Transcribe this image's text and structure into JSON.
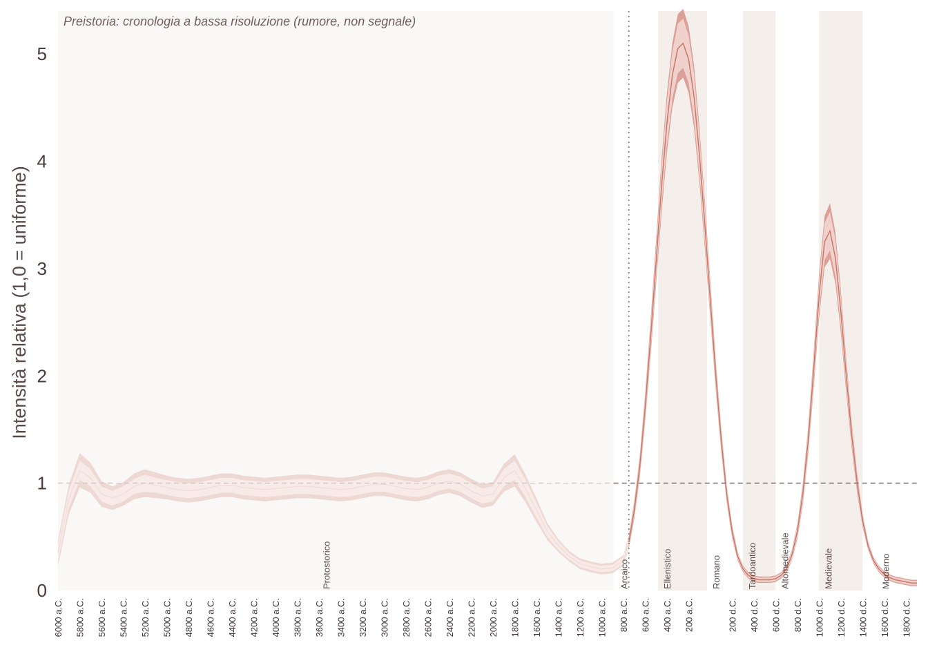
{
  "chart_data": {
    "type": "area",
    "title": "",
    "ylabel": "Intensità relativa (1,0 = uniforme)",
    "xlabel": "",
    "xlim": [
      -6000,
      1900
    ],
    "ylim": [
      0,
      5.4
    ],
    "yticks": [
      0,
      1,
      2,
      3,
      4,
      5
    ],
    "ytick_labels": [
      "0",
      "1",
      "2",
      "3",
      "4",
      "5"
    ],
    "xticks": [
      -6000,
      -5800,
      -5600,
      -5400,
      -5200,
      -5000,
      -4800,
      -4600,
      -4400,
      -4200,
      -4000,
      -3800,
      -3600,
      -3400,
      -3200,
      -3000,
      -2800,
      -2600,
      -2400,
      -2200,
      -2000,
      -1800,
      -1600,
      -1400,
      -1200,
      -1000,
      -800,
      -600,
      -400,
      -200,
      200,
      400,
      600,
      800,
      1000,
      1200,
      1400,
      1600,
      1800
    ],
    "xtick_labels": [
      "6000 a.C.",
      "5800 a.C.",
      "5600 a.C.",
      "5400 a.C.",
      "5200 a.C.",
      "5000 a.C.",
      "4800 a.C.",
      "4600 a.C.",
      "4400 a.C.",
      "4200 a.C.",
      "4000 a.C.",
      "3800 a.C.",
      "3600 a.C.",
      "3400 a.C.",
      "3200 a.C.",
      "3000 a.C.",
      "2800 a.C.",
      "2600 a.C.",
      "2400 a.C.",
      "2200 a.C.",
      "2000 a.C.",
      "1800 a.C.",
      "1600 a.C.",
      "1400 a.C.",
      "1200 a.C.",
      "1000 a.C.",
      "800 a.C.",
      "600 a.C.",
      "400 a.C.",
      "200 a.C.",
      "200 d.C.",
      "400 d.C.",
      "600 d.C.",
      "800 d.C.",
      "1000 d.C.",
      "1200 d.C.",
      "1400 d.C.",
      "1600 d.C.",
      "1800 d.C."
    ],
    "reference_line": {
      "y": 1.0,
      "style": "dashed"
    },
    "divider_line": {
      "x": -750,
      "style": "dotted"
    },
    "prehistory_region": {
      "x0": -6000,
      "x1": -750,
      "note": "Preistoria: cronologia a bassa risoluzione (rumore, non segnale)"
    },
    "periods": [
      {
        "name": "Protostorico",
        "start": -6000,
        "end": -750,
        "shaded": false
      },
      {
        "name": "Arcaico",
        "start": -750,
        "end": -480,
        "shaded": false
      },
      {
        "name": "Ellenistico",
        "start": -480,
        "end": -30,
        "shaded": true
      },
      {
        "name": "Romano",
        "start": -30,
        "end": 300,
        "shaded": false
      },
      {
        "name": "Tardoantico",
        "start": 300,
        "end": 600,
        "shaded": true
      },
      {
        "name": "Altomedievale",
        "start": 600,
        "end": 1000,
        "shaded": false
      },
      {
        "name": "Medievale",
        "start": 1000,
        "end": 1400,
        "shaded": true
      },
      {
        "name": "Moderno",
        "start": 1400,
        "end": 1900,
        "shaded": false
      }
    ],
    "series": [
      {
        "x": [
          -6000,
          -5900,
          -5800,
          -5700,
          -5600,
          -5500,
          -5400,
          -5300,
          -5200,
          -5100,
          -5000,
          -4900,
          -4800,
          -4700,
          -4600,
          -4500,
          -4400,
          -4300,
          -4200,
          -4100,
          -4000,
          -3900,
          -3800,
          -3700,
          -3600,
          -3500,
          -3400,
          -3300,
          -3200,
          -3100,
          -3000,
          -2900,
          -2800,
          -2700,
          -2600,
          -2500,
          -2400,
          -2300,
          -2200,
          -2100,
          -2000,
          -1900,
          -1800,
          -1700,
          -1600,
          -1500,
          -1400,
          -1300,
          -1200,
          -1100,
          -1000,
          -900,
          -800,
          -750,
          -700,
          -650,
          -600,
          -550,
          -500,
          -450,
          -400,
          -350,
          -300,
          -250,
          -200,
          -150,
          -100,
          -50,
          0,
          50,
          100,
          150,
          200,
          250,
          300,
          350,
          400,
          450,
          500,
          550,
          600,
          650,
          700,
          750,
          800,
          850,
          900,
          950,
          1000,
          1050,
          1100,
          1150,
          1200,
          1250,
          1300,
          1350,
          1400,
          1450,
          1500,
          1550,
          1600,
          1650,
          1700,
          1750,
          1800,
          1850,
          1900
        ],
        "median": [
          0.35,
          0.85,
          1.12,
          1.05,
          0.9,
          0.86,
          0.9,
          0.97,
          1.0,
          0.98,
          0.96,
          0.94,
          0.93,
          0.94,
          0.96,
          0.98,
          0.98,
          0.96,
          0.95,
          0.94,
          0.95,
          0.96,
          0.97,
          0.97,
          0.96,
          0.95,
          0.94,
          0.95,
          0.97,
          0.99,
          0.99,
          0.97,
          0.95,
          0.94,
          0.96,
          1.0,
          1.02,
          0.99,
          0.93,
          0.88,
          0.9,
          1.05,
          1.12,
          0.95,
          0.75,
          0.55,
          0.42,
          0.32,
          0.25,
          0.22,
          0.2,
          0.21,
          0.28,
          0.45,
          0.75,
          1.15,
          1.7,
          2.35,
          3.05,
          3.75,
          4.35,
          4.8,
          5.05,
          5.1,
          4.95,
          4.6,
          4.05,
          3.4,
          2.7,
          2.0,
          1.4,
          0.9,
          0.55,
          0.32,
          0.2,
          0.14,
          0.11,
          0.1,
          0.1,
          0.1,
          0.11,
          0.14,
          0.2,
          0.33,
          0.55,
          0.9,
          1.4,
          2.05,
          2.75,
          3.25,
          3.35,
          3.1,
          2.6,
          2.0,
          1.45,
          1.0,
          0.65,
          0.42,
          0.28,
          0.2,
          0.15,
          0.12,
          0.1,
          0.09,
          0.08,
          0.07,
          0.07
        ],
        "band_50": [
          0.08,
          0.08,
          0.09,
          0.08,
          0.07,
          0.07,
          0.07,
          0.07,
          0.08,
          0.07,
          0.07,
          0.07,
          0.07,
          0.07,
          0.07,
          0.07,
          0.07,
          0.07,
          0.07,
          0.07,
          0.07,
          0.07,
          0.07,
          0.07,
          0.07,
          0.07,
          0.07,
          0.07,
          0.07,
          0.07,
          0.07,
          0.07,
          0.07,
          0.07,
          0.07,
          0.07,
          0.07,
          0.07,
          0.07,
          0.07,
          0.07,
          0.08,
          0.09,
          0.08,
          0.07,
          0.05,
          0.04,
          0.03,
          0.03,
          0.03,
          0.03,
          0.03,
          0.03,
          0.04,
          0.05,
          0.07,
          0.09,
          0.12,
          0.15,
          0.18,
          0.2,
          0.22,
          0.23,
          0.23,
          0.22,
          0.21,
          0.19,
          0.16,
          0.13,
          0.1,
          0.08,
          0.06,
          0.04,
          0.03,
          0.02,
          0.02,
          0.02,
          0.02,
          0.02,
          0.02,
          0.02,
          0.02,
          0.03,
          0.04,
          0.05,
          0.07,
          0.09,
          0.12,
          0.15,
          0.17,
          0.18,
          0.17,
          0.14,
          0.11,
          0.08,
          0.06,
          0.04,
          0.03,
          0.02,
          0.02,
          0.02,
          0.02,
          0.02,
          0.02,
          0.02,
          0.02,
          0.02
        ],
        "band_90": [
          0.12,
          0.14,
          0.16,
          0.14,
          0.12,
          0.11,
          0.11,
          0.12,
          0.13,
          0.12,
          0.11,
          0.11,
          0.11,
          0.11,
          0.11,
          0.11,
          0.11,
          0.11,
          0.11,
          0.11,
          0.11,
          0.11,
          0.11,
          0.11,
          0.11,
          0.11,
          0.11,
          0.11,
          0.11,
          0.11,
          0.11,
          0.11,
          0.11,
          0.11,
          0.11,
          0.11,
          0.11,
          0.11,
          0.11,
          0.11,
          0.11,
          0.13,
          0.15,
          0.13,
          0.11,
          0.08,
          0.06,
          0.05,
          0.05,
          0.05,
          0.05,
          0.05,
          0.05,
          0.06,
          0.08,
          0.1,
          0.13,
          0.17,
          0.21,
          0.25,
          0.28,
          0.3,
          0.32,
          0.32,
          0.31,
          0.29,
          0.26,
          0.22,
          0.18,
          0.14,
          0.11,
          0.08,
          0.06,
          0.04,
          0.03,
          0.03,
          0.03,
          0.03,
          0.03,
          0.03,
          0.03,
          0.03,
          0.04,
          0.05,
          0.07,
          0.1,
          0.13,
          0.17,
          0.21,
          0.24,
          0.26,
          0.24,
          0.2,
          0.16,
          0.12,
          0.09,
          0.06,
          0.04,
          0.03,
          0.03,
          0.03,
          0.03,
          0.03,
          0.03,
          0.03,
          0.03,
          0.03
        ]
      }
    ],
    "colors": {
      "line": "#c9786a",
      "band_outer": "#d6938a",
      "band_inner": "#f3d6d0",
      "prehistory_band": "#ead2ce",
      "prehistory_bg": "#faf8f6",
      "period_shade": "#f4efea",
      "reference": "#8a807d"
    }
  }
}
